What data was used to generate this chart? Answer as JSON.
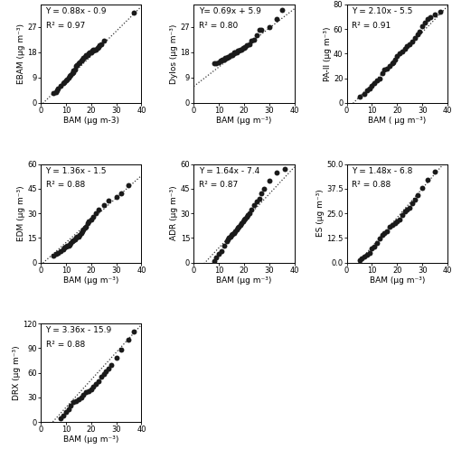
{
  "subplots": [
    {
      "ylabel": "EBAM (μg m⁻³)",
      "xlabel": "BAM (μg m-3)",
      "equation": "Y = 0.88x - 0.9",
      "r2": "R² = 0.97",
      "slope": 0.88,
      "intercept": -0.9,
      "xlim": [
        0,
        40
      ],
      "ylim": [
        0,
        35
      ],
      "xticks": [
        0,
        10,
        20,
        30,
        40
      ],
      "yticks": [
        0,
        9,
        18,
        27
      ],
      "bam_x": [
        5,
        6,
        6.5,
        7,
        8,
        9,
        9.5,
        10,
        10.5,
        11,
        11.5,
        12,
        12.5,
        13,
        13,
        13.5,
        14,
        14.5,
        15,
        15.5,
        16,
        16.5,
        17,
        17.5,
        18,
        18.5,
        19,
        19.5,
        20,
        20.5,
        21,
        21,
        21.5,
        22,
        22.5,
        23,
        23.5,
        24,
        25,
        37
      ],
      "y_vals": [
        3.5,
        4,
        4.5,
        5,
        6,
        7,
        7.5,
        8,
        8.5,
        9,
        9.5,
        10,
        10.5,
        11,
        11.5,
        12,
        13,
        13.5,
        14,
        14.5,
        15,
        15.5,
        16,
        16.5,
        17,
        17,
        17.5,
        18,
        18,
        18.5,
        18.5,
        19,
        19,
        19,
        19.5,
        20,
        20.5,
        21,
        22,
        32
      ]
    },
    {
      "ylabel": "Dylos (μg m⁻³)",
      "xlabel": "BAM (μg m⁻³)",
      "equation": "Y= 0.69x + 5.9",
      "r2": "R² = 0.80",
      "slope": 0.69,
      "intercept": 5.9,
      "xlim": [
        0,
        40
      ],
      "ylim": [
        0,
        35
      ],
      "xticks": [
        0,
        10,
        20,
        30,
        40
      ],
      "yticks": [
        0,
        9,
        18,
        27
      ],
      "bam_x": [
        8,
        9,
        10,
        10.5,
        11,
        11.5,
        12,
        12.5,
        13,
        13.5,
        14,
        14.5,
        15,
        15.5,
        16,
        16,
        16.5,
        17,
        17.5,
        18,
        18.5,
        19,
        19.5,
        20,
        20.5,
        21,
        22,
        23,
        24,
        25,
        26,
        27,
        30,
        33,
        35
      ],
      "y_vals": [
        14,
        14,
        14.5,
        15,
        15,
        15.5,
        15.5,
        16,
        16,
        16.5,
        16.5,
        17,
        17,
        17,
        17.5,
        18,
        18,
        18,
        18.5,
        18.5,
        19,
        19,
        19.5,
        19.5,
        20,
        20.5,
        21,
        22,
        22.5,
        24,
        26,
        26,
        27,
        30,
        33
      ]
    },
    {
      "ylabel": "PA-II (μg m⁻³)",
      "xlabel": "BAM ( μg m⁻³)",
      "equation": "Y = 2.10x - 5.5",
      "r2": "R² = 0.91",
      "slope": 2.1,
      "intercept": -5.5,
      "xlim": [
        0,
        40
      ],
      "ylim": [
        0,
        80
      ],
      "xticks": [
        0,
        10,
        20,
        30,
        40
      ],
      "yticks": [
        0,
        20,
        40,
        60,
        80
      ],
      "bam_x": [
        5,
        7,
        8,
        9,
        10,
        11,
        12,
        13,
        14,
        15,
        16,
        17,
        18,
        18.5,
        19,
        20,
        21,
        22,
        23,
        24,
        25,
        26,
        27,
        28,
        29,
        30,
        31,
        32,
        33,
        35,
        37
      ],
      "y_vals": [
        5,
        7,
        10,
        12,
        14,
        16,
        18,
        20,
        24,
        27,
        28,
        30,
        32,
        33,
        35,
        38,
        40,
        42,
        44,
        46,
        48,
        50,
        53,
        56,
        58,
        62,
        65,
        68,
        70,
        72,
        74
      ]
    },
    {
      "ylabel": "EDM (μg m⁻³)",
      "xlabel": "BAM (μg m⁻³)",
      "equation": "Y = 1.36x - 1.5",
      "r2": "R² = 0.88",
      "slope": 1.36,
      "intercept": -1.5,
      "xlim": [
        0,
        40
      ],
      "ylim": [
        0,
        60
      ],
      "xticks": [
        0,
        10,
        20,
        30,
        40
      ],
      "yticks": [
        0,
        15,
        30,
        45,
        60
      ],
      "bam_x": [
        5,
        6,
        7,
        8,
        9,
        9.5,
        10,
        10.5,
        11,
        11.5,
        12,
        12.5,
        13,
        13.5,
        14,
        14.5,
        15,
        15.5,
        16,
        16.5,
        17,
        17.5,
        18,
        18.5,
        19,
        20,
        21,
        22,
        23,
        25,
        27,
        30,
        32,
        35
      ],
      "y_vals": [
        4,
        5,
        6,
        7,
        8,
        9,
        9.5,
        10,
        10.5,
        11,
        12,
        13,
        13.5,
        14,
        15,
        15.5,
        16,
        17,
        18,
        19,
        20,
        21,
        22,
        24,
        25,
        26,
        28,
        30,
        32,
        35,
        38,
        40,
        42,
        47
      ]
    },
    {
      "ylabel": "ADR (μg m⁻³)",
      "xlabel": "BAM (μg m⁻³)",
      "equation": "Y = 1.64x - 7.4",
      "r2": "R² = 0.87",
      "slope": 1.64,
      "intercept": -7.4,
      "xlim": [
        0,
        40
      ],
      "ylim": [
        0,
        60
      ],
      "xticks": [
        0,
        10,
        20,
        30,
        40
      ],
      "yticks": [
        0,
        15,
        30,
        45,
        60
      ],
      "bam_x": [
        8,
        9,
        10,
        11,
        12,
        13,
        13.5,
        14,
        14.5,
        15,
        15.5,
        16,
        16.5,
        17,
        17.5,
        18,
        18.5,
        19,
        19.5,
        20,
        20.5,
        21,
        21.5,
        22,
        23,
        24,
        25,
        26,
        27,
        28,
        30,
        33,
        36
      ],
      "y_vals": [
        1,
        3,
        5,
        7,
        10,
        13,
        14,
        15,
        16,
        17,
        17.5,
        18,
        19,
        20,
        21,
        22,
        23,
        24,
        25,
        26,
        27,
        28,
        29,
        30,
        32,
        35,
        37,
        39,
        42,
        45,
        50,
        55,
        57
      ]
    },
    {
      "ylabel": "ES (μg m⁻³)",
      "xlabel": "BAM (μg m⁻³)",
      "equation": "Y = 1.48x - 6.8",
      "r2": "R² = 0.88",
      "slope": 1.48,
      "intercept": -6.8,
      "xlim": [
        0,
        40
      ],
      "ylim": [
        0,
        50
      ],
      "xticks": [
        0,
        10,
        20,
        30,
        40
      ],
      "yticks": [
        0,
        12.5,
        25,
        37.5,
        50
      ],
      "bam_x": [
        5,
        6,
        7,
        8,
        9,
        10,
        11,
        12,
        13,
        14,
        15,
        16,
        17,
        18,
        19,
        20,
        21,
        22,
        23,
        24,
        25,
        26,
        27,
        28,
        30,
        32,
        35
      ],
      "y_vals": [
        1,
        2,
        3,
        4,
        5,
        7,
        8,
        10,
        12,
        14,
        15,
        16,
        18,
        19,
        20,
        21,
        22,
        24,
        26,
        27,
        28,
        30,
        32,
        34,
        38,
        42,
        46
      ]
    },
    {
      "ylabel": "DRX (μg m⁻³)",
      "xlabel": "BAM (μg m⁻³)",
      "equation": "Y = 3.36x - 15.9",
      "r2": "R² = 0.88",
      "slope": 3.36,
      "intercept": -15.9,
      "xlim": [
        0,
        40
      ],
      "ylim": [
        0,
        120
      ],
      "xticks": [
        0,
        10,
        20,
        30,
        40
      ],
      "yticks": [
        0,
        30,
        60,
        90,
        120
      ],
      "bam_x": [
        8,
        9,
        10,
        11,
        12,
        13,
        14,
        15,
        16,
        17,
        18,
        19,
        20,
        21,
        22,
        23,
        24,
        25,
        26,
        27,
        28,
        30,
        32,
        35,
        37
      ],
      "y_vals": [
        5,
        8,
        12,
        16,
        20,
        24,
        26,
        28,
        30,
        33,
        36,
        38,
        40,
        43,
        46,
        50,
        55,
        58,
        62,
        65,
        70,
        78,
        88,
        100,
        110
      ]
    }
  ],
  "marker_color": "#1a1a1a",
  "marker_size": 18,
  "line_color": "#333333",
  "line_style": ":",
  "tick_fontsize": 6,
  "label_fontsize": 6.5,
  "eq_fontsize": 6.5,
  "bg_color": "#ffffff"
}
